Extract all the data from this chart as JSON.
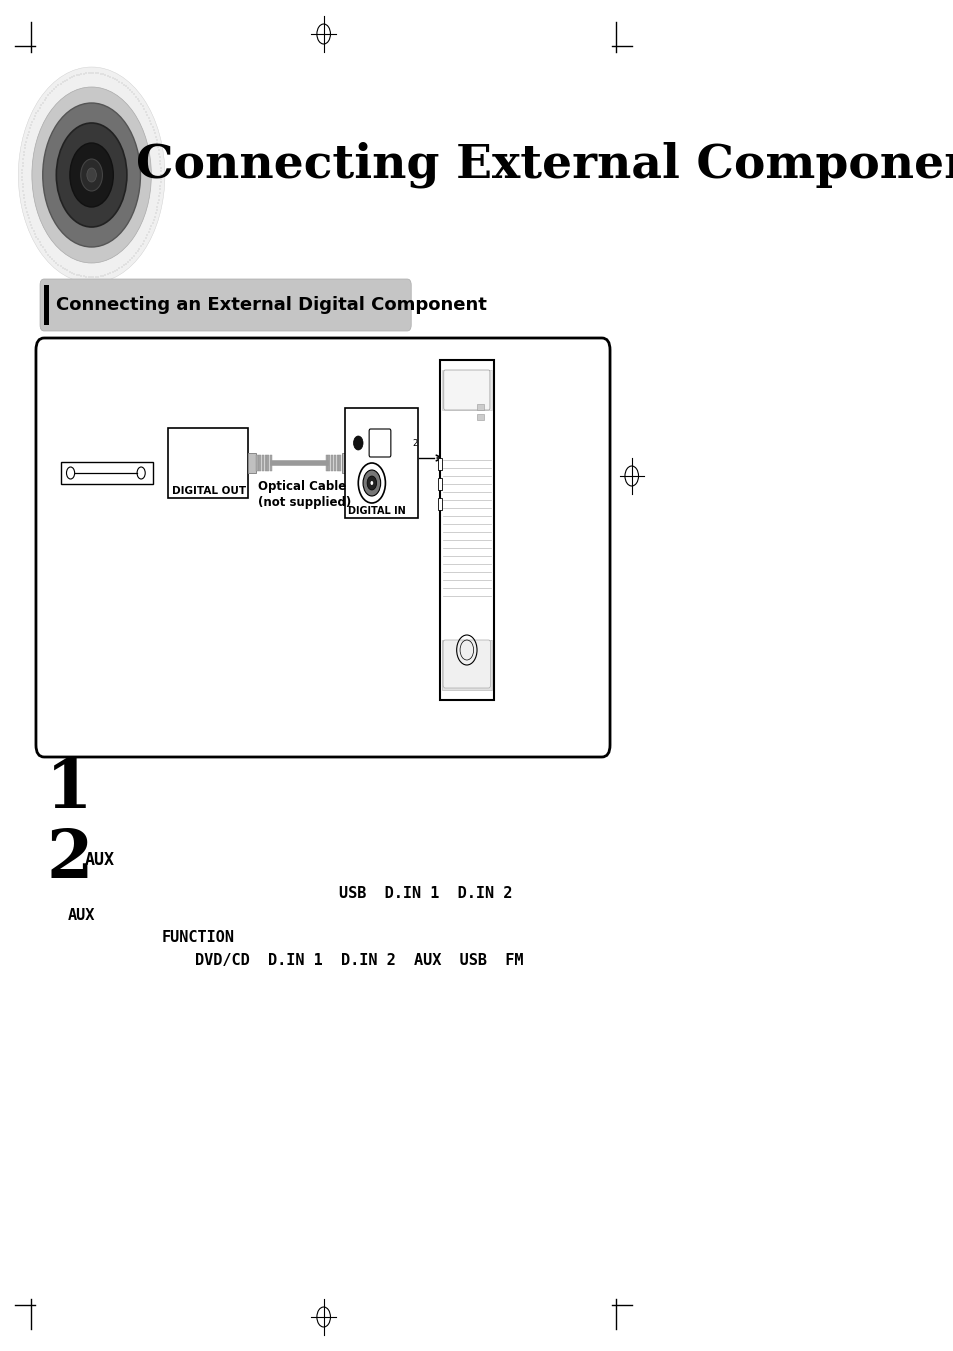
{
  "title": "Connecting External Components",
  "section_title": "Connecting an External Digital Component",
  "step1_num": "1",
  "step2_num": "2",
  "step2_label": "AUX",
  "line1": "USB  D.IN 1  D.IN 2",
  "line2": "AUX",
  "line3": "FUNCTION",
  "line4": "DVD/CD  D.IN 1  D.IN 2  AUX  USB  FM",
  "bg_color": "#ffffff"
}
